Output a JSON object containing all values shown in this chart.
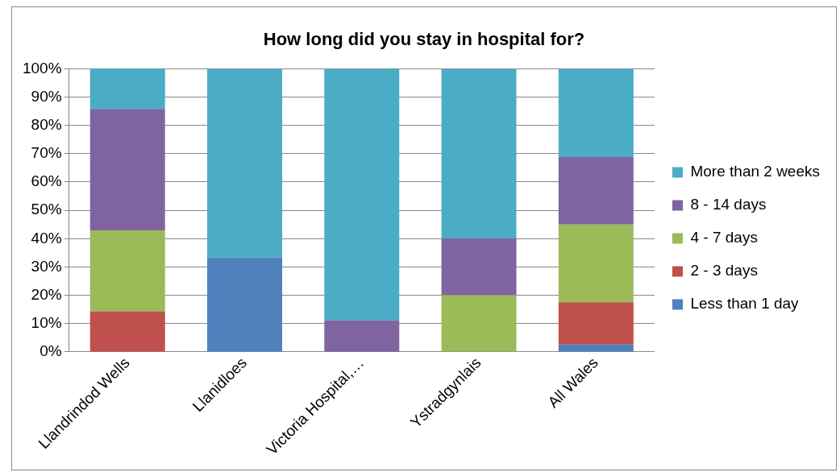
{
  "chart_data": {
    "type": "bar",
    "title": "How long did you stay in hospital for?",
    "categories": [
      "Llandrindod Wells",
      "Llanidloes",
      "Victoria Hospital,…",
      "Ystradgynlais",
      "All Wales"
    ],
    "stacked": true,
    "series": [
      {
        "name": "Less than 1 day",
        "color": "#4f81bd",
        "values": [
          0,
          33.3,
          0,
          0,
          2.6
        ]
      },
      {
        "name": "2 - 3 days",
        "color": "#c0504d",
        "values": [
          14.3,
          0,
          0,
          0,
          14.9
        ]
      },
      {
        "name": "4 - 7 days",
        "color": "#9bbb59",
        "values": [
          28.6,
          0,
          0,
          20,
          27.5
        ]
      },
      {
        "name": "8 - 14 days",
        "color": "#8064a2",
        "values": [
          42.9,
          0,
          11.1,
          20,
          23.8
        ]
      },
      {
        "name": "More than 2 weeks",
        "color": "#4bacc6",
        "values": [
          14.3,
          66.7,
          88.9,
          60,
          31.2
        ]
      }
    ],
    "ylim": [
      0,
      100
    ],
    "yticks": [
      {
        "value": 0,
        "label": "0%"
      },
      {
        "value": 10,
        "label": "10%"
      },
      {
        "value": 20,
        "label": "20%"
      },
      {
        "value": 30,
        "label": "30%"
      },
      {
        "value": 40,
        "label": "40%"
      },
      {
        "value": 50,
        "label": "50%"
      },
      {
        "value": 60,
        "label": "60%"
      },
      {
        "value": 70,
        "label": "70%"
      },
      {
        "value": 80,
        "label": "80%"
      },
      {
        "value": 90,
        "label": "90%"
      },
      {
        "value": 100,
        "label": "100%"
      }
    ],
    "grid": "y",
    "legend": "right"
  }
}
